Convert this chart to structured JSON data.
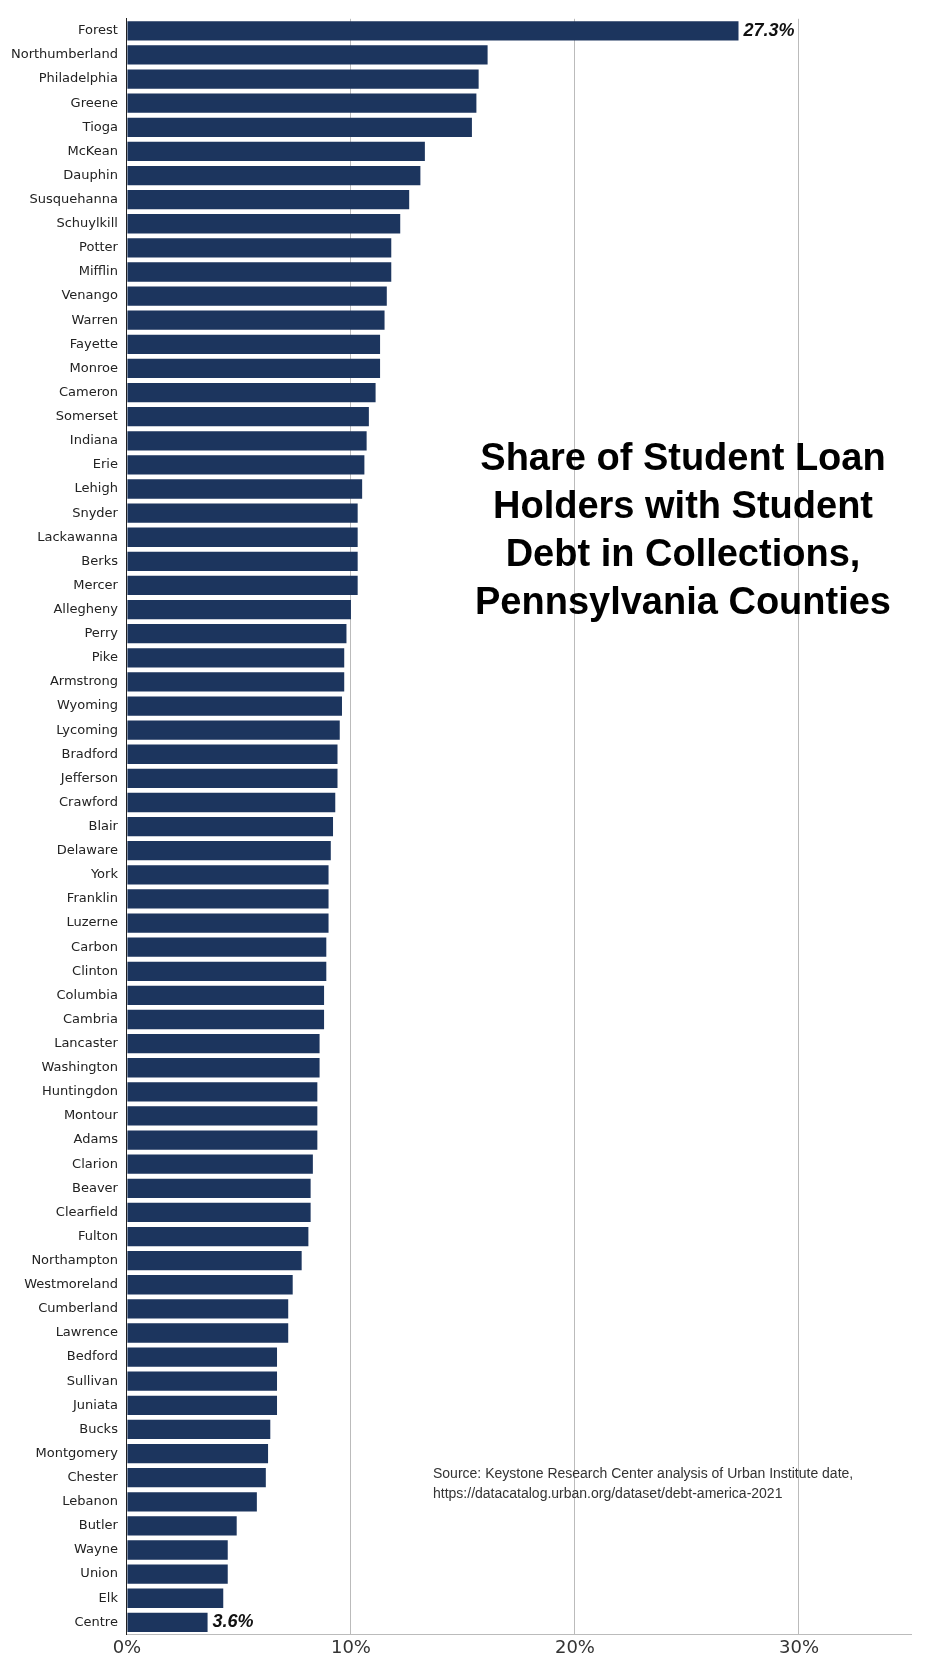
{
  "chart_data": {
    "type": "bar",
    "orientation": "horizontal",
    "title": "Share of Student Loan Holders with Student Debt in Collections, Pennsylvania Counties",
    "categories": [
      "Forest",
      "Northumberland",
      "Philadelphia",
      "Greene",
      "Tioga",
      "McKean",
      "Dauphin",
      "Susquehanna",
      "Schuylkill",
      "Potter",
      "Mifflin",
      "Venango",
      "Warren",
      "Fayette",
      "Monroe",
      "Cameron",
      "Somerset",
      "Indiana",
      "Erie",
      "Lehigh",
      "Snyder",
      "Lackawanna",
      "Berks",
      "Mercer",
      "Allegheny",
      "Perry",
      "Pike",
      "Armstrong",
      "Wyoming",
      "Lycoming",
      "Bradford",
      "Jefferson",
      "Crawford",
      "Blair",
      "Delaware",
      "York",
      "Franklin",
      "Luzerne",
      "Carbon",
      "Clinton",
      "Columbia",
      "Cambria",
      "Lancaster",
      "Washington",
      "Huntingdon",
      "Montour",
      "Adams",
      "Clarion",
      "Beaver",
      "Clearfield",
      "Fulton",
      "Northampton",
      "Westmoreland",
      "Cumberland",
      "Lawrence",
      "Bedford",
      "Sullivan",
      "Juniata",
      "Bucks",
      "Montgomery",
      "Chester",
      "Lebanon",
      "Butler",
      "Wayne",
      "Union",
      "Elk",
      "Centre"
    ],
    "values": [
      27.3,
      16.1,
      15.7,
      15.6,
      15.4,
      13.3,
      13.1,
      12.6,
      12.2,
      11.8,
      11.8,
      11.6,
      11.5,
      11.3,
      11.3,
      11.1,
      10.8,
      10.7,
      10.6,
      10.5,
      10.3,
      10.3,
      10.3,
      10.3,
      10.0,
      9.8,
      9.7,
      9.7,
      9.6,
      9.5,
      9.4,
      9.4,
      9.3,
      9.2,
      9.1,
      9.0,
      9.0,
      9.0,
      8.9,
      8.9,
      8.8,
      8.8,
      8.6,
      8.6,
      8.5,
      8.5,
      8.5,
      8.3,
      8.2,
      8.2,
      8.1,
      7.8,
      7.4,
      7.2,
      7.2,
      6.7,
      6.7,
      6.7,
      6.4,
      6.3,
      6.2,
      5.8,
      4.9,
      4.5,
      4.5,
      4.3,
      3.6
    ],
    "value_labels": [
      "27.3%",
      null,
      null,
      null,
      null,
      null,
      null,
      null,
      null,
      null,
      null,
      null,
      null,
      null,
      null,
      null,
      null,
      null,
      null,
      null,
      null,
      null,
      null,
      null,
      null,
      null,
      null,
      null,
      null,
      null,
      null,
      null,
      null,
      null,
      null,
      null,
      null,
      null,
      null,
      null,
      null,
      null,
      null,
      null,
      null,
      null,
      null,
      null,
      null,
      null,
      null,
      null,
      null,
      null,
      null,
      null,
      null,
      null,
      null,
      null,
      null,
      null,
      null,
      null,
      null,
      null,
      "3.6%"
    ],
    "color": "#1c355e",
    "xlim": [
      0,
      35
    ],
    "xticks": [
      {
        "value": 0,
        "label": "0%"
      },
      {
        "value": 10,
        "label": "10%"
      },
      {
        "value": 20,
        "label": "20%"
      },
      {
        "value": 30,
        "label": "30%"
      }
    ],
    "grid": "x",
    "legend": false,
    "annotations": [
      "Source: Keystone Research Center analysis of Urban Institute date, https://datacatalog.urban.org/dataset/debt-america-2021"
    ]
  }
}
